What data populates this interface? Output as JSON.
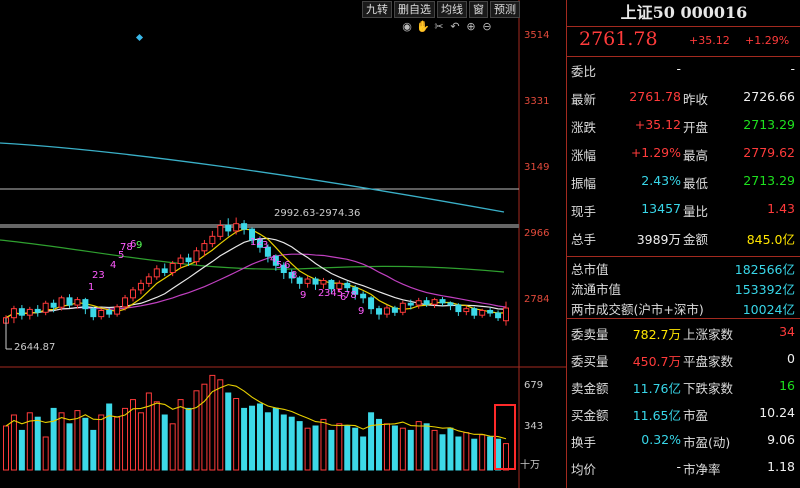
{
  "toolbar": {
    "buttons": [
      "九转",
      "删自选",
      "均线",
      "窗",
      "预测"
    ],
    "tools": [
      "eye-icon",
      "hand-icon",
      "scissors-icon",
      "undo-icon",
      "zoom-in-icon",
      "zoom-out-icon"
    ]
  },
  "chart": {
    "price_ticks": [
      "3514",
      "3331",
      "3149",
      "2966",
      "2784"
    ],
    "volume_ticks": [
      "679",
      "343"
    ],
    "volume_unit": "十万",
    "high_annotation": "2992.63-2974.36",
    "low_annotation": "2644.87",
    "td_labels": [
      "1",
      "23",
      "4",
      "5",
      "6",
      "78",
      "9",
      "12",
      "3",
      "4",
      "5",
      "6",
      "8",
      "9",
      "2",
      "345",
      "6",
      "78",
      "9"
    ]
  },
  "chart_data": {
    "type": "candlestick",
    "title": "",
    "ylim": [
      2600,
      3600
    ],
    "ticks": [
      3514,
      3331,
      3149,
      2966,
      2784
    ],
    "candles": [
      [
        2720,
        2735,
        2700,
        2742,
        2690
      ],
      [
        2735,
        2760,
        2725,
        2768,
        2720
      ],
      [
        2760,
        2742,
        2738,
        2770,
        2730
      ],
      [
        2742,
        2758,
        2735,
        2765,
        2730
      ],
      [
        2758,
        2750,
        2740,
        2770,
        2738
      ],
      [
        2750,
        2775,
        2745,
        2782,
        2742
      ],
      [
        2775,
        2764,
        2758,
        2785,
        2750
      ],
      [
        2764,
        2790,
        2760,
        2796,
        2755
      ],
      [
        2790,
        2770,
        2765,
        2800,
        2762
      ],
      [
        2770,
        2785,
        2768,
        2792,
        2760
      ],
      [
        2785,
        2760,
        2752,
        2790,
        2745
      ],
      [
        2760,
        2738,
        2732,
        2765,
        2728
      ],
      [
        2738,
        2755,
        2735,
        2760,
        2730
      ],
      [
        2755,
        2745,
        2738,
        2762,
        2735
      ],
      [
        2745,
        2765,
        2740,
        2772,
        2738
      ],
      [
        2765,
        2790,
        2760,
        2798,
        2755
      ],
      [
        2790,
        2812,
        2785,
        2820,
        2780
      ],
      [
        2812,
        2830,
        2805,
        2840,
        2800
      ],
      [
        2830,
        2848,
        2825,
        2858,
        2820
      ],
      [
        2848,
        2870,
        2845,
        2880,
        2840
      ],
      [
        2870,
        2860,
        2855,
        2885,
        2850
      ],
      [
        2860,
        2885,
        2855,
        2892,
        2850
      ],
      [
        2885,
        2900,
        2878,
        2910,
        2872
      ],
      [
        2900,
        2890,
        2882,
        2912,
        2878
      ],
      [
        2890,
        2920,
        2885,
        2930,
        2880
      ],
      [
        2920,
        2940,
        2912,
        2950,
        2905
      ],
      [
        2940,
        2960,
        2935,
        2975,
        2930
      ],
      [
        2960,
        2990,
        2955,
        3005,
        2950
      ],
      [
        2990,
        2975,
        2965,
        3010,
        2960
      ],
      [
        2975,
        2995,
        2970,
        3012,
        2965
      ],
      [
        2995,
        2980,
        2970,
        3005,
        2965
      ],
      [
        2980,
        2950,
        2945,
        2985,
        2940
      ],
      [
        2950,
        2930,
        2920,
        2960,
        2915
      ],
      [
        2930,
        2905,
        2895,
        2938,
        2888
      ],
      [
        2905,
        2880,
        2872,
        2910,
        2865
      ],
      [
        2880,
        2860,
        2850,
        2888,
        2842
      ],
      [
        2860,
        2845,
        2838,
        2868,
        2830
      ],
      [
        2845,
        2830,
        2822,
        2850,
        2815
      ],
      [
        2830,
        2842,
        2825,
        2850,
        2818
      ],
      [
        2842,
        2828,
        2820,
        2848,
        2812
      ],
      [
        2828,
        2838,
        2822,
        2845,
        2815
      ],
      [
        2838,
        2815,
        2808,
        2842,
        2802
      ],
      [
        2815,
        2830,
        2810,
        2838,
        2805
      ],
      [
        2830,
        2818,
        2810,
        2836,
        2805
      ],
      [
        2818,
        2800,
        2792,
        2825,
        2785
      ],
      [
        2800,
        2790,
        2780,
        2808,
        2775
      ],
      [
        2790,
        2760,
        2752,
        2795,
        2745
      ],
      [
        2760,
        2745,
        2738,
        2768,
        2730
      ],
      [
        2745,
        2762,
        2740,
        2770,
        2735
      ],
      [
        2762,
        2750,
        2745,
        2768,
        2740
      ],
      [
        2750,
        2775,
        2748,
        2782,
        2742
      ],
      [
        2775,
        2770,
        2762,
        2785,
        2758
      ],
      [
        2770,
        2782,
        2765,
        2790,
        2760
      ],
      [
        2782,
        2772,
        2768,
        2792,
        2765
      ],
      [
        2772,
        2785,
        2768,
        2790,
        2762
      ],
      [
        2785,
        2776,
        2770,
        2792,
        2768
      ],
      [
        2776,
        2770,
        2762,
        2780,
        2756
      ],
      [
        2770,
        2752,
        2745,
        2775,
        2740
      ],
      [
        2752,
        2760,
        2748,
        2768,
        2742
      ],
      [
        2760,
        2742,
        2738,
        2765,
        2732
      ],
      [
        2742,
        2755,
        2740,
        2760,
        2735
      ],
      [
        2755,
        2748,
        2742,
        2762,
        2738
      ],
      [
        2748,
        2735,
        2730,
        2755,
        2726
      ],
      [
        2726.66,
        2761.78,
        2713.29,
        2779.62,
        2713.29
      ]
    ],
    "volumes": [
      400,
      500,
      360,
      520,
      480,
      300,
      560,
      520,
      420,
      540,
      470,
      360,
      500,
      600,
      480,
      560,
      640,
      520,
      700,
      620,
      500,
      420,
      640,
      560,
      720,
      780,
      860,
      820,
      700,
      650,
      560,
      580,
      600,
      520,
      560,
      500,
      480,
      440,
      380,
      400,
      460,
      360,
      420,
      400,
      380,
      300,
      520,
      460,
      420,
      400,
      380,
      360,
      440,
      420,
      360,
      320,
      380,
      300,
      340,
      280,
      320,
      300,
      280,
      240
    ]
  },
  "panel": {
    "title": "上证50 000016",
    "price": "2761.78",
    "change": "+35.12",
    "change_pct": "+1.29%",
    "rows": [
      {
        "l1": "委比",
        "v1": "-",
        "l2": "",
        "v2": "-",
        "c1": "white",
        "c2": "white"
      },
      {
        "l1": "最新",
        "v1": "2761.78",
        "l2": "昨收",
        "v2": "2726.66",
        "c1": "red",
        "c2": "white"
      },
      {
        "l1": "涨跌",
        "v1": "+35.12",
        "l2": "开盘",
        "v2": "2713.29",
        "c1": "red",
        "c2": "green"
      },
      {
        "l1": "涨幅",
        "v1": "+1.29%",
        "l2": "最高",
        "v2": "2779.62",
        "c1": "red",
        "c2": "red"
      },
      {
        "l1": "振幅",
        "v1": "2.43%",
        "l2": "最低",
        "v2": "2713.29",
        "c1": "cyan",
        "c2": "green"
      },
      {
        "l1": "现手",
        "v1": "13457",
        "l2": "量比",
        "v2": "1.43",
        "c1": "cyan",
        "c2": "red"
      },
      {
        "l1": "总手",
        "v1": "3989万",
        "l2": "金额",
        "v2": "845.0亿",
        "c1": "white",
        "c2": "yellow"
      }
    ],
    "market": [
      {
        "label": "总市值",
        "value": "182566亿"
      },
      {
        "label": "流通市值",
        "value": "153392亿"
      },
      {
        "label": "两市成交额(沪市+深市)",
        "value": "10024亿"
      }
    ],
    "rows2": [
      {
        "l1": "委卖量",
        "v1": "782.7万",
        "l2": "上涨家数",
        "v2": "34",
        "c1": "yellow",
        "c2": "red"
      },
      {
        "l1": "委买量",
        "v1": "450.7万",
        "l2": "平盘家数",
        "v2": "0",
        "c1": "red",
        "c2": "white"
      },
      {
        "l1": "卖金额",
        "v1": "11.76亿",
        "l2": "下跌家数",
        "v2": "16",
        "c1": "cyan",
        "c2": "green"
      },
      {
        "l1": "买金额",
        "v1": "11.65亿",
        "l2": "市盈",
        "v2": "10.24",
        "c1": "cyan",
        "c2": "white"
      },
      {
        "l1": "换手",
        "v1": "0.32%",
        "l2": "市盈(动)",
        "v2": "9.06",
        "c1": "cyan",
        "c2": "white"
      },
      {
        "l1": "均价",
        "v1": "-",
        "l2": "市净率",
        "v2": "1.18",
        "c1": "white",
        "c2": "white"
      }
    ]
  }
}
